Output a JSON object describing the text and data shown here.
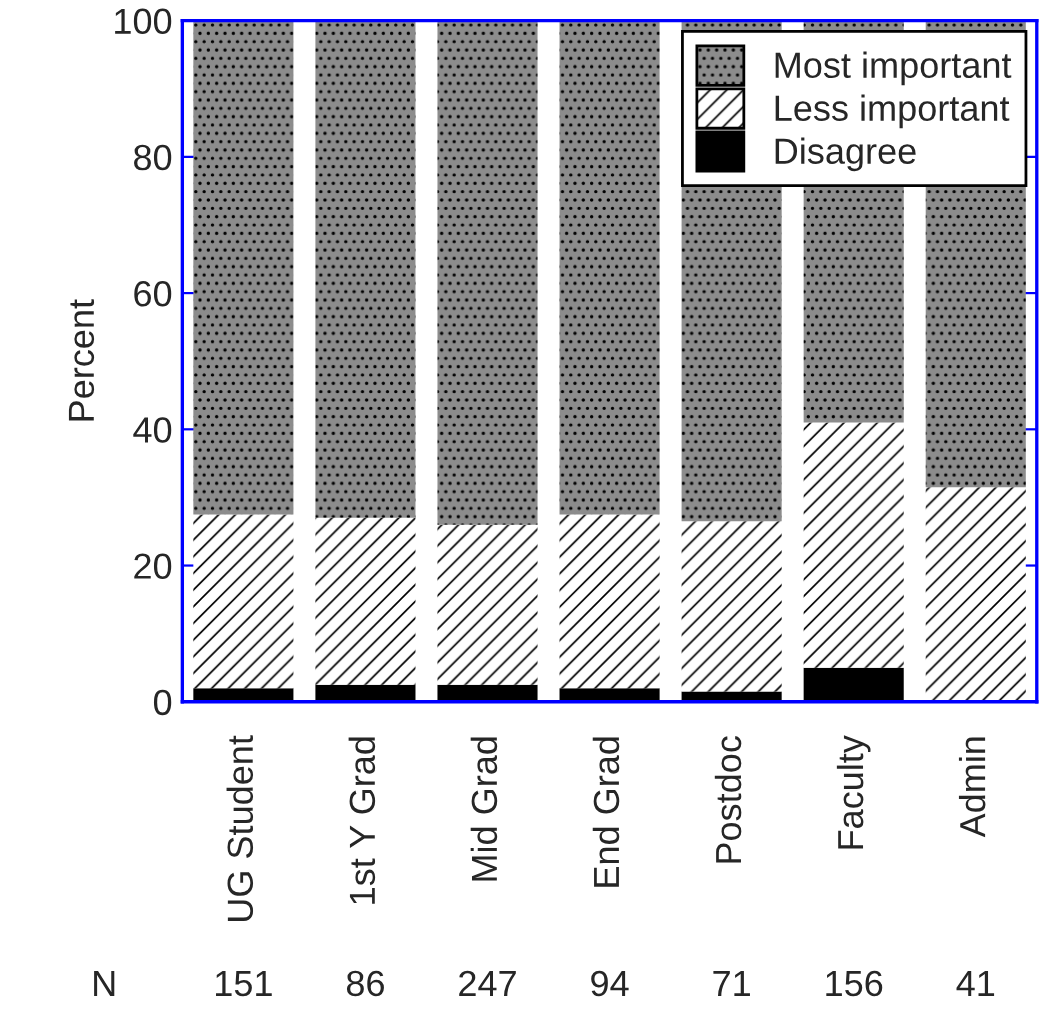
{
  "chart_data": {
    "type": "bar",
    "stacked": true,
    "ylabel": "Percent",
    "categories": [
      "UG Student",
      "1st Y Grad",
      "Mid Grad",
      "End Grad",
      "Postdoc",
      "Faculty",
      "Admin"
    ],
    "series": [
      {
        "name": "Disagree",
        "color": "#000000",
        "values": [
          2,
          2.5,
          2.5,
          2,
          1.5,
          5,
          0
        ]
      },
      {
        "name": "Less important",
        "color": "#ffffff",
        "values": [
          25.5,
          24.5,
          23.5,
          25.5,
          25,
          36,
          31.5
        ]
      },
      {
        "name": "Most important",
        "color": "#8c8c8c",
        "values": [
          72.5,
          73,
          74,
          72.5,
          73.5,
          59,
          68.5
        ]
      }
    ],
    "ylim": [
      0,
      100
    ],
    "yticks": [
      0,
      20,
      40,
      60,
      80,
      100
    ],
    "legend": "top right",
    "annotations": [
      "N",
      "151",
      "86",
      "247",
      "94",
      "71",
      "156",
      "41"
    ]
  }
}
